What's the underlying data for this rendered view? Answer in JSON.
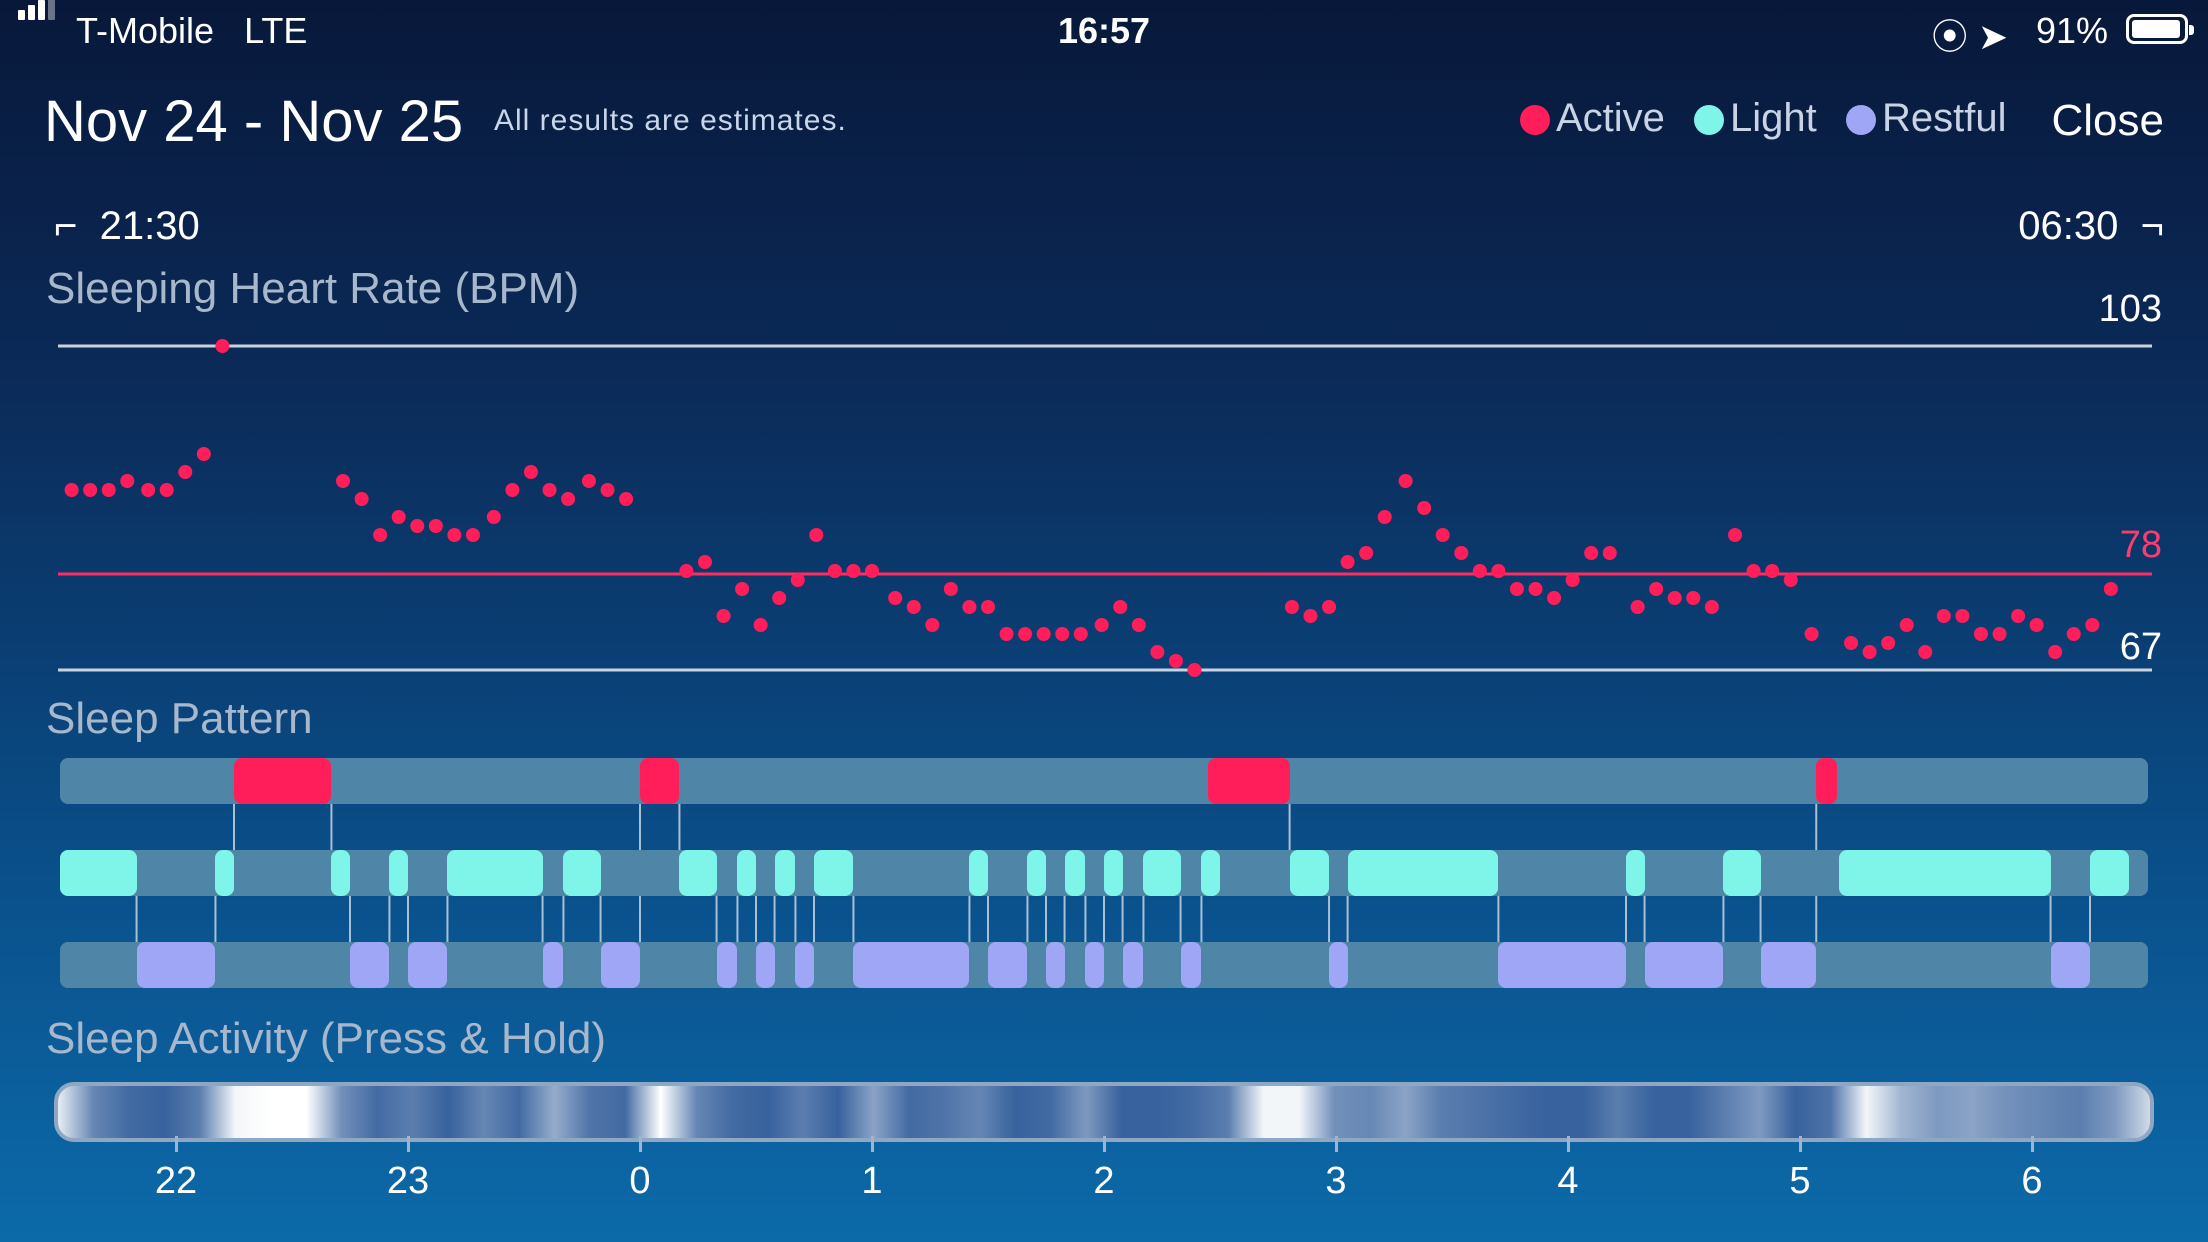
{
  "status_bar": {
    "carrier": "T-Mobile",
    "network": "LTE",
    "time": "16:57",
    "battery": "91%"
  },
  "header": {
    "title": "Nov 24 - Nov 25",
    "subtitle": "All results are estimates.",
    "legend": [
      {
        "label": "Active",
        "color": "#ff1e5a"
      },
      {
        "label": "Light",
        "color": "#7ff5ea"
      },
      {
        "label": "Restful",
        "color": "#9fa6f5"
      }
    ],
    "close_label": "Close"
  },
  "range": {
    "start": "21:30",
    "end": "06:30"
  },
  "sections": {
    "heart_rate_title": "Sleeping Heart Rate (BPM)",
    "sleep_pattern_title": "Sleep Pattern",
    "sleep_activity_title": "Sleep Activity (Press & Hold)"
  },
  "chart_data": {
    "type": "scatter",
    "title": "Sleeping Heart Rate (BPM)",
    "ymax_label": "103",
    "avg_label": "78",
    "ymin_label": "67",
    "ylim": [
      67,
      103
    ],
    "x_ticks": [
      "22",
      "23",
      "0",
      "1",
      "2",
      "3",
      "4",
      "5",
      "6"
    ],
    "x_unit": "hour of night (21.5 = 21:30)",
    "points": [
      [
        21.55,
        87
      ],
      [
        21.63,
        87
      ],
      [
        21.71,
        87
      ],
      [
        21.79,
        88
      ],
      [
        21.88,
        87
      ],
      [
        21.96,
        87
      ],
      [
        22.04,
        89
      ],
      [
        22.12,
        91
      ],
      [
        22.2,
        103
      ],
      [
        22.72,
        88
      ],
      [
        22.8,
        86
      ],
      [
        22.88,
        82
      ],
      [
        22.96,
        84
      ],
      [
        23.04,
        83
      ],
      [
        23.12,
        83
      ],
      [
        23.2,
        82
      ],
      [
        23.28,
        82
      ],
      [
        23.37,
        84
      ],
      [
        23.45,
        87
      ],
      [
        23.53,
        89
      ],
      [
        23.61,
        87
      ],
      [
        23.69,
        86
      ],
      [
        23.78,
        88
      ],
      [
        23.86,
        87
      ],
      [
        23.94,
        86
      ],
      [
        24.2,
        78
      ],
      [
        24.28,
        79
      ],
      [
        24.36,
        73
      ],
      [
        24.44,
        76
      ],
      [
        24.52,
        72
      ],
      [
        24.6,
        75
      ],
      [
        24.68,
        77
      ],
      [
        24.76,
        82
      ],
      [
        24.84,
        78
      ],
      [
        24.92,
        78
      ],
      [
        25.0,
        78
      ],
      [
        25.1,
        75
      ],
      [
        25.18,
        74
      ],
      [
        25.26,
        72
      ],
      [
        25.34,
        76
      ],
      [
        25.42,
        74
      ],
      [
        25.5,
        74
      ],
      [
        25.58,
        71
      ],
      [
        25.66,
        71
      ],
      [
        25.74,
        71
      ],
      [
        25.82,
        71
      ],
      [
        25.9,
        71
      ],
      [
        25.99,
        72
      ],
      [
        26.07,
        74
      ],
      [
        26.15,
        72
      ],
      [
        26.23,
        69
      ],
      [
        26.31,
        68
      ],
      [
        26.39,
        67
      ],
      [
        26.81,
        74
      ],
      [
        26.89,
        73
      ],
      [
        26.97,
        74
      ],
      [
        27.05,
        79
      ],
      [
        27.13,
        80
      ],
      [
        27.21,
        84
      ],
      [
        27.3,
        88
      ],
      [
        27.38,
        85
      ],
      [
        27.46,
        82
      ],
      [
        27.54,
        80
      ],
      [
        27.62,
        78
      ],
      [
        27.7,
        78
      ],
      [
        27.78,
        76
      ],
      [
        27.86,
        76
      ],
      [
        27.94,
        75
      ],
      [
        28.02,
        77
      ],
      [
        28.1,
        80
      ],
      [
        28.18,
        80
      ],
      [
        28.3,
        74
      ],
      [
        28.38,
        76
      ],
      [
        28.46,
        75
      ],
      [
        28.54,
        75
      ],
      [
        28.62,
        74
      ],
      [
        28.72,
        82
      ],
      [
        28.8,
        78
      ],
      [
        28.88,
        78
      ],
      [
        28.96,
        77
      ],
      [
        29.05,
        71
      ],
      [
        29.22,
        70
      ],
      [
        29.3,
        69
      ],
      [
        29.38,
        70
      ],
      [
        29.46,
        72
      ],
      [
        29.54,
        69
      ],
      [
        29.62,
        73
      ],
      [
        29.7,
        73
      ],
      [
        29.78,
        71
      ],
      [
        29.86,
        71
      ],
      [
        29.94,
        73
      ],
      [
        30.02,
        72
      ],
      [
        30.1,
        69
      ],
      [
        30.18,
        71
      ],
      [
        30.26,
        72
      ],
      [
        30.34,
        76
      ]
    ]
  },
  "sleep_pattern": {
    "active": [
      [
        22.25,
        22.67
      ],
      [
        24.0,
        24.17
      ],
      [
        26.45,
        26.8
      ],
      [
        29.07,
        29.16
      ]
    ],
    "light": [
      [
        21.5,
        21.83
      ],
      [
        22.17,
        22.25
      ],
      [
        22.67,
        22.75
      ],
      [
        22.92,
        23.0
      ],
      [
        23.17,
        23.58
      ],
      [
        23.67,
        23.83
      ],
      [
        24.17,
        24.33
      ],
      [
        24.42,
        24.5
      ],
      [
        24.58,
        24.67
      ],
      [
        24.75,
        24.92
      ],
      [
        25.42,
        25.5
      ],
      [
        25.67,
        25.75
      ],
      [
        25.83,
        25.92
      ],
      [
        26.0,
        26.08
      ],
      [
        26.17,
        26.33
      ],
      [
        26.42,
        26.5
      ],
      [
        26.8,
        26.97
      ],
      [
        27.05,
        27.7
      ],
      [
        28.25,
        28.33
      ],
      [
        28.67,
        28.83
      ],
      [
        29.17,
        30.08
      ],
      [
        30.25,
        30.42
      ]
    ],
    "restful": [
      [
        21.83,
        22.17
      ],
      [
        22.75,
        22.92
      ],
      [
        23.0,
        23.17
      ],
      [
        23.58,
        23.67
      ],
      [
        23.83,
        24.0
      ],
      [
        24.33,
        24.42
      ],
      [
        24.5,
        24.58
      ],
      [
        24.67,
        24.75
      ],
      [
        24.92,
        25.42
      ],
      [
        25.5,
        25.67
      ],
      [
        25.75,
        25.83
      ],
      [
        25.92,
        26.0
      ],
      [
        26.08,
        26.17
      ],
      [
        26.33,
        26.42
      ],
      [
        26.97,
        27.05
      ],
      [
        27.7,
        28.25
      ],
      [
        28.33,
        28.67
      ],
      [
        28.83,
        29.07
      ],
      [
        30.08,
        30.25
      ]
    ]
  },
  "sleep_activity": {
    "intensity": [
      0.9,
      0.35,
      0.2,
      0.15,
      0.3,
      0.95,
      1.0,
      1.0,
      0.4,
      0.2,
      0.3,
      0.15,
      0.35,
      0.2,
      0.55,
      0.25,
      0.2,
      1.0,
      0.35,
      0.2,
      0.15,
      0.3,
      0.15,
      0.5,
      0.2,
      0.25,
      0.35,
      0.15,
      0.2,
      0.45,
      0.15,
      0.15,
      0.2,
      0.3,
      0.95,
      0.95,
      0.4,
      0.35,
      0.5,
      0.3,
      0.25,
      0.2,
      0.15,
      0.15,
      0.3,
      0.15,
      0.15,
      0.3,
      0.45,
      0.15,
      0.25,
      0.95,
      0.6,
      0.45,
      0.5,
      0.4,
      0.35,
      0.3,
      0.45,
      0.8
    ]
  }
}
